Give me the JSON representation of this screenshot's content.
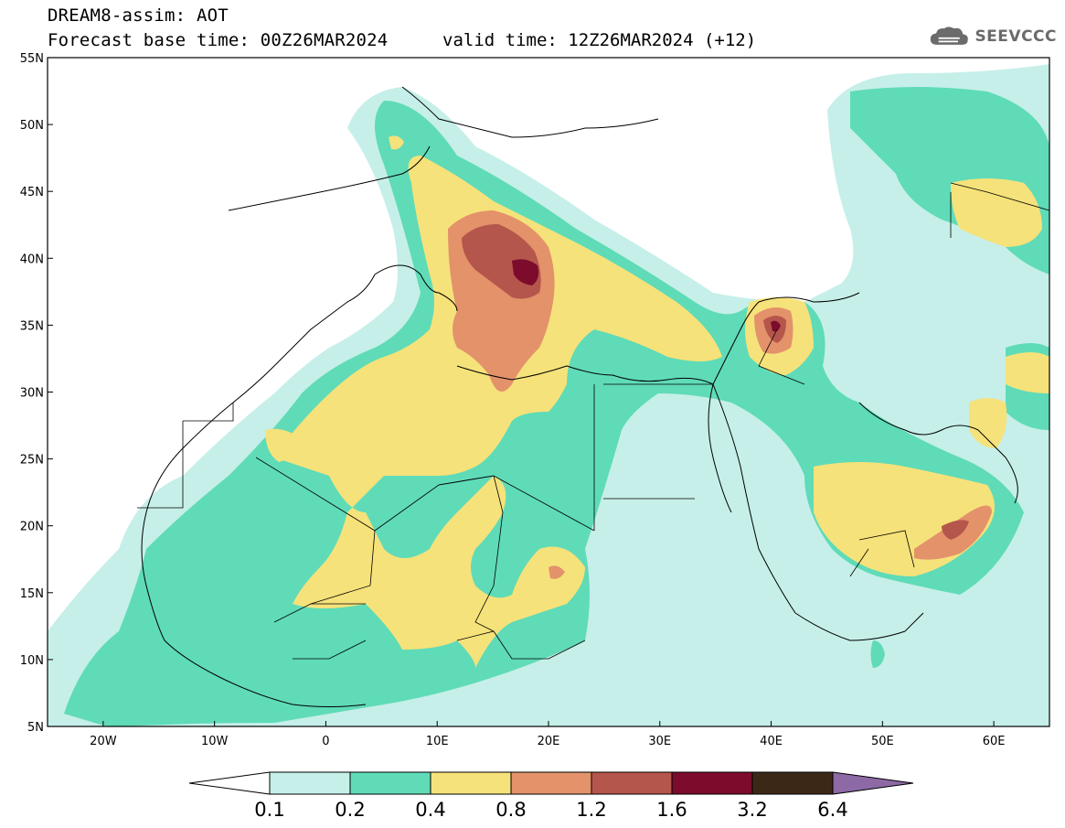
{
  "title": {
    "line1": "DREAM8-assim: AOT",
    "line2": "Forecast base time: 00Z26MAR2024",
    "valid": "valid time: 12Z26MAR2024 (+12)"
  },
  "logo": {
    "text": "SEEVCCC",
    "icon": "cloud-icon"
  },
  "map": {
    "lat_labels": [
      "55N",
      "50N",
      "45N",
      "40N",
      "35N",
      "30N",
      "25N",
      "20N",
      "15N",
      "10N",
      "5N"
    ],
    "lon_labels": [
      "20W",
      "10W",
      "0",
      "10E",
      "20E",
      "30E",
      "40E",
      "50E",
      "60E"
    ],
    "lat_range": [
      5,
      55
    ],
    "lon_range": [
      -25,
      65
    ]
  },
  "colorbar": {
    "levels": [
      "0.1",
      "0.2",
      "0.4",
      "0.8",
      "1.2",
      "1.6",
      "3.2",
      "6.4"
    ],
    "colors": [
      "#c6efe9",
      "#5fdbb8",
      "#f6e27a",
      "#e3926a",
      "#b5564c",
      "#7c0b2c",
      "#3c2817",
      "#8d6aa6"
    ]
  }
}
